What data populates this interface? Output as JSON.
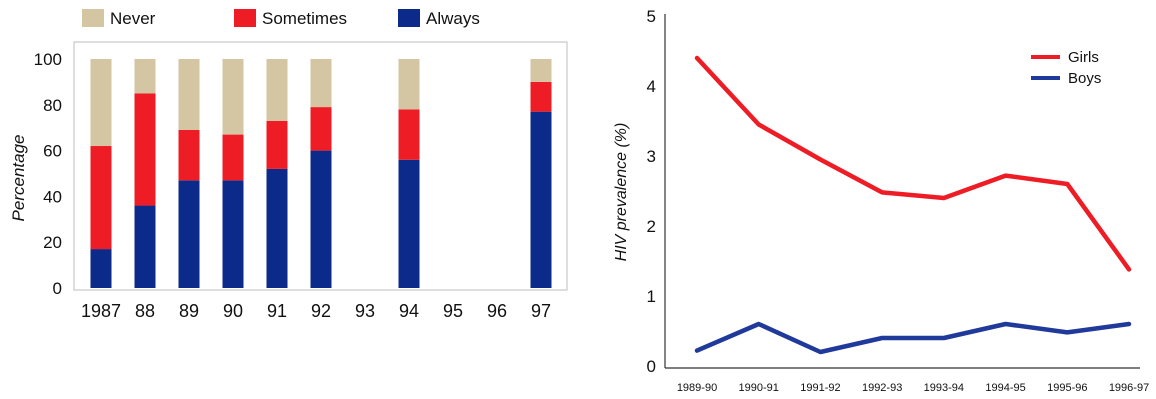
{
  "chart_data": [
    {
      "type": "bar",
      "stacked": true,
      "title": "",
      "xlabel": "",
      "ylabel": "Percentage",
      "ylim": [
        0,
        100
      ],
      "yticks": [
        0,
        20,
        40,
        60,
        80,
        100
      ],
      "categories": [
        "1987",
        "88",
        "89",
        "90",
        "91",
        "92",
        "93",
        "94",
        "95",
        "96",
        "97"
      ],
      "legend_position": "top",
      "grid": false,
      "series": [
        {
          "name": "Always",
          "color": "#0b2a8a",
          "values": [
            17,
            36,
            47,
            47,
            52,
            60,
            null,
            56,
            null,
            null,
            77
          ]
        },
        {
          "name": "Sometimes",
          "color": "#ee1c25",
          "values": [
            45,
            49,
            22,
            20,
            21,
            19,
            null,
            22,
            null,
            null,
            13
          ]
        },
        {
          "name": "Never",
          "color": "#d4c5a3",
          "values": [
            38,
            15,
            31,
            33,
            27,
            21,
            null,
            22,
            null,
            null,
            10
          ]
        }
      ],
      "legend_order": [
        "Never",
        "Sometimes",
        "Always"
      ]
    },
    {
      "type": "line",
      "title": "",
      "xlabel": "",
      "ylabel": "HIV prevalence (%)",
      "ylim": [
        0,
        5
      ],
      "yticks": [
        0,
        1,
        2,
        3,
        4,
        5
      ],
      "categories": [
        "1989-90",
        "1990-91",
        "1991-92",
        "1992-93",
        "1993-94",
        "1994-95",
        "1995-96",
        "1996-97"
      ],
      "legend_position": "top-right",
      "grid": false,
      "series": [
        {
          "name": "Girls",
          "color": "#ee1c25",
          "values": [
            4.4,
            3.45,
            2.95,
            2.48,
            2.4,
            2.72,
            2.6,
            1.38
          ]
        },
        {
          "name": "Boys",
          "color": "#1f3a9a",
          "values": [
            0.22,
            0.6,
            0.2,
            0.4,
            0.4,
            0.6,
            0.48,
            0.6
          ]
        }
      ]
    }
  ]
}
